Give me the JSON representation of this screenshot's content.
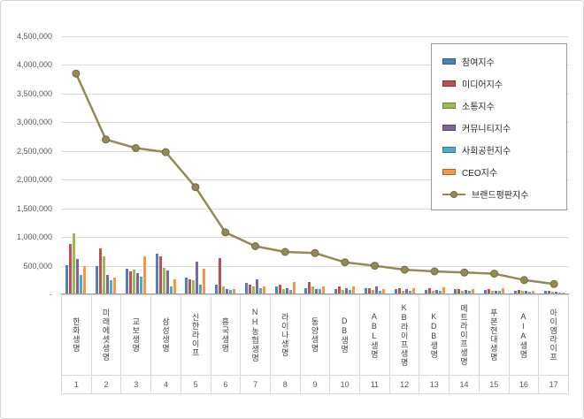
{
  "chart_data": {
    "type": "bar",
    "title": "",
    "xlabel": "",
    "ylabel": "",
    "ylim": [
      0,
      4500000
    ],
    "y_tick_interval": 500000,
    "grid": true,
    "legend_position": "top-right",
    "y_ticks": [
      {
        "value": 4500000,
        "label": "4,500,000"
      },
      {
        "value": 4000000,
        "label": "4,000,000"
      },
      {
        "value": 3500000,
        "label": "3,500,000"
      },
      {
        "value": 3000000,
        "label": "3,000,000"
      },
      {
        "value": 2500000,
        "label": "2,500,000"
      },
      {
        "value": 2000000,
        "label": "2,000,000"
      },
      {
        "value": 1500000,
        "label": "1,500,000"
      },
      {
        "value": 1000000,
        "label": "1,000,000"
      },
      {
        "value": 500000,
        "label": "500,000"
      },
      {
        "value": 0,
        "label": "-"
      }
    ],
    "categories": [
      "한화생명",
      "미래에셋생명",
      "교보생명",
      "삼성생명",
      "신한라이프",
      "흥국생명",
      "NH농협생명",
      "라이나생명",
      "동양생명",
      "DB생명",
      "ABL생명",
      "KB라이프생명",
      "KDB생명",
      "메트라이프생명",
      "푸본현대생명",
      "AIA생명",
      "아이엠라이프"
    ],
    "category_numbers": [
      "1",
      "2",
      "3",
      "4",
      "5",
      "6",
      "7",
      "8",
      "9",
      "10",
      "11",
      "12",
      "13",
      "14",
      "15",
      "16",
      "17"
    ],
    "series": [
      {
        "name": "참여지수",
        "type": "bar",
        "color": "#4F81BD",
        "values": [
          500000,
          480000,
          430000,
          700000,
          280000,
          150000,
          180000,
          120000,
          100000,
          80000,
          90000,
          80000,
          60000,
          70000,
          60000,
          50000,
          40000
        ]
      },
      {
        "name": "미디어지수",
        "type": "bar",
        "color": "#C0504D",
        "values": [
          860000,
          780000,
          380000,
          650000,
          250000,
          620000,
          150000,
          150000,
          200000,
          120000,
          100000,
          90000,
          90000,
          80000,
          80000,
          60000,
          50000
        ]
      },
      {
        "name": "소통지수",
        "type": "bar",
        "color": "#9BBB59",
        "values": [
          1050000,
          650000,
          420000,
          450000,
          230000,
          130000,
          120000,
          80000,
          120000,
          60000,
          60000,
          50000,
          40000,
          50000,
          40000,
          40000,
          30000
        ]
      },
      {
        "name": "커뮤니티지수",
        "type": "bar",
        "color": "#8064A2",
        "values": [
          600000,
          330000,
          350000,
          400000,
          550000,
          80000,
          250000,
          100000,
          80000,
          100000,
          120000,
          70000,
          60000,
          60000,
          50000,
          40000,
          30000
        ]
      },
      {
        "name": "사회공헌지수",
        "type": "bar",
        "color": "#4BACC6",
        "values": [
          330000,
          230000,
          300000,
          130000,
          150000,
          60000,
          90000,
          60000,
          70000,
          60000,
          50000,
          50000,
          40000,
          40000,
          40000,
          30000,
          20000
        ]
      },
      {
        "name": "CEO지수",
        "type": "bar",
        "color": "#F79646",
        "values": [
          480000,
          280000,
          650000,
          250000,
          430000,
          80000,
          120000,
          200000,
          120000,
          120000,
          80000,
          90000,
          110000,
          80000,
          90000,
          40000,
          20000
        ]
      },
      {
        "name": "브랜드평판지수",
        "type": "line",
        "color": "#948A54",
        "marker_stroke": "#6F6A45",
        "values": [
          3850000,
          2700000,
          2550000,
          2480000,
          1870000,
          1080000,
          840000,
          740000,
          720000,
          560000,
          500000,
          430000,
          400000,
          380000,
          360000,
          250000,
          180000
        ]
      }
    ]
  }
}
